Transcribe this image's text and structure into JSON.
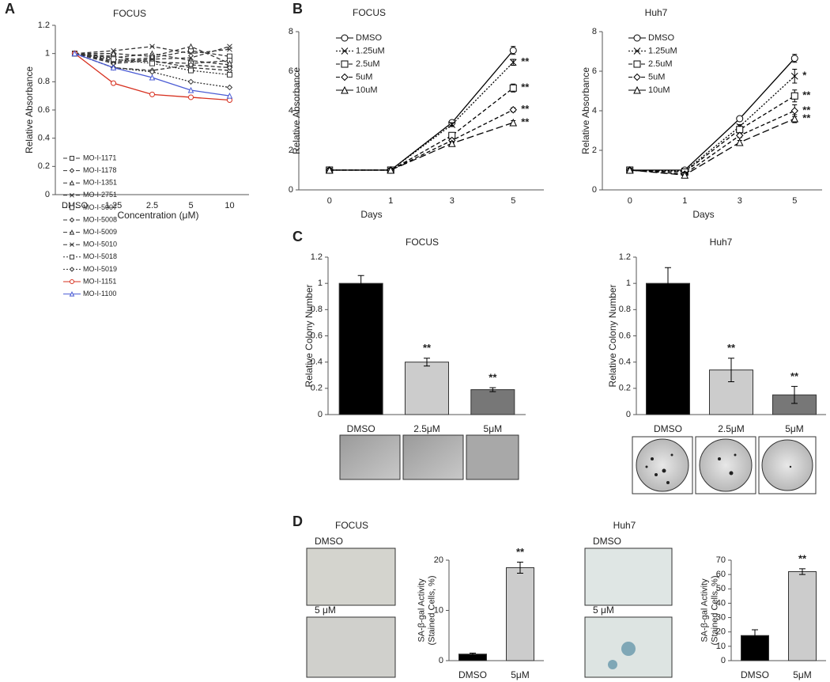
{
  "panels": [
    "A",
    "B",
    "C",
    "D"
  ],
  "chart_data": [
    {
      "type": "line",
      "title": "FOCUS",
      "x_label": "Concentration (μM)",
      "y_label": "Relative Absorbance",
      "categories": [
        "DMSO",
        "1.25",
        "2.5",
        "5",
        "10"
      ],
      "ylim": [
        0,
        1.2
      ],
      "yticks": [
        0,
        0.2,
        0.4,
        0.6,
        0.8,
        1,
        1.2
      ],
      "legend": "lower left",
      "series": [
        {
          "name": "MO-I-1171",
          "color": "#333333",
          "dash": "dashed",
          "marker": "square",
          "values": [
            1,
            0.95,
            0.97,
            1.02,
            0.98
          ]
        },
        {
          "name": "MO-I-1178",
          "color": "#333333",
          "dash": "dashed",
          "marker": "diamond",
          "values": [
            1,
            0.93,
            0.95,
            0.9,
            0.88
          ]
        },
        {
          "name": "MO-I-1351",
          "color": "#333333",
          "dash": "dashed",
          "marker": "triangle",
          "values": [
            1,
            0.97,
            1.0,
            0.95,
            0.92
          ]
        },
        {
          "name": "MO-I-2751",
          "color": "#333333",
          "dash": "dashed",
          "marker": "x",
          "values": [
            1,
            1.02,
            1.05,
            1.0,
            1.03
          ]
        },
        {
          "name": "MO-I-5007",
          "color": "#333333",
          "dash": "dashed",
          "marker": "square",
          "values": [
            1,
            0.98,
            0.94,
            0.93,
            0.95
          ]
        },
        {
          "name": "MO-I-5008",
          "color": "#333333",
          "dash": "dashed",
          "marker": "diamond",
          "values": [
            1,
            0.9,
            0.88,
            0.92,
            0.9
          ]
        },
        {
          "name": "MO-I-5009",
          "color": "#333333",
          "dash": "dashed",
          "marker": "triangle",
          "values": [
            1,
            1.0,
            0.98,
            1.05,
            0.93
          ]
        },
        {
          "name": "MO-I-5010",
          "color": "#333333",
          "dash": "dashed",
          "marker": "x",
          "values": [
            1,
            0.94,
            0.96,
            0.97,
            1.05
          ]
        },
        {
          "name": "MO-I-5018",
          "color": "#333333",
          "dash": "dotted",
          "marker": "square",
          "values": [
            1,
            0.96,
            0.93,
            0.88,
            0.85
          ]
        },
        {
          "name": "MO-I-5019",
          "color": "#333333",
          "dash": "dotted",
          "marker": "diamond",
          "values": [
            1,
            0.9,
            0.87,
            0.8,
            0.76
          ]
        },
        {
          "name": "MO-I-1151",
          "color": "#d7301f",
          "dash": "solid",
          "marker": "circle",
          "values": [
            1,
            0.79,
            0.71,
            0.69,
            0.67
          ]
        },
        {
          "name": "MO-I-1100",
          "color": "#4a5bd4",
          "dash": "solid",
          "marker": "triangle",
          "values": [
            1,
            0.9,
            0.83,
            0.74,
            0.7
          ]
        }
      ]
    },
    {
      "type": "line",
      "title": "FOCUS",
      "x_label": "Days",
      "y_label": "Relative Absorbance",
      "categories": [
        "0",
        "1",
        "3",
        "5"
      ],
      "ylim": [
        0,
        8
      ],
      "yticks": [
        0,
        2,
        4,
        6,
        8
      ],
      "legend": "upper left",
      "series": [
        {
          "name": "DMSO",
          "color": "#000000",
          "dash": "solid",
          "marker": "circle",
          "values": [
            1,
            1,
            3.4,
            7.05
          ],
          "errors": [
            0.1,
            0.1,
            0.1,
            0.2
          ]
        },
        {
          "name": "1.25uM",
          "color": "#000000",
          "dash": "dotted",
          "marker": "x",
          "values": [
            1,
            1,
            3.3,
            6.45
          ],
          "errors": [
            0.1,
            0.1,
            0.1,
            0.15
          ],
          "significance": "**"
        },
        {
          "name": "2.5uM",
          "color": "#000000",
          "dash": "dashed",
          "marker": "square",
          "values": [
            1,
            1,
            2.75,
            5.15
          ],
          "errors": [
            0.1,
            0.1,
            0.1,
            0.2
          ],
          "significance": "**"
        },
        {
          "name": "5uM",
          "color": "#000000",
          "dash": "dashed",
          "marker": "diamond",
          "values": [
            1,
            1,
            2.5,
            4.05
          ],
          "errors": [
            0.1,
            0.1,
            0.1,
            0.1
          ],
          "significance": "**"
        },
        {
          "name": "10uM",
          "color": "#000000",
          "dash": "longdash",
          "marker": "triangle",
          "values": [
            1,
            1,
            2.35,
            3.4
          ],
          "errors": [
            0.1,
            0.1,
            0.1,
            0.1
          ],
          "significance": "**"
        }
      ]
    },
    {
      "type": "line",
      "title": "Huh7",
      "x_label": "Days",
      "y_label": "Relative Absorbance",
      "categories": [
        "0",
        "1",
        "3",
        "5"
      ],
      "ylim": [
        0,
        8
      ],
      "yticks": [
        0,
        2,
        4,
        6,
        8
      ],
      "legend": "upper left",
      "series": [
        {
          "name": "DMSO",
          "color": "#000000",
          "dash": "solid",
          "marker": "circle",
          "values": [
            1,
            1,
            3.6,
            6.65
          ],
          "errors": [
            0.1,
            0.1,
            0.1,
            0.2
          ]
        },
        {
          "name": "1.25uM",
          "color": "#000000",
          "dash": "dotted",
          "marker": "x",
          "values": [
            1,
            0.95,
            3.2,
            5.75
          ],
          "errors": [
            0.1,
            0.1,
            0.1,
            0.35
          ],
          "significance": "*"
        },
        {
          "name": "2.5uM",
          "color": "#000000",
          "dash": "dashed",
          "marker": "square",
          "values": [
            1,
            0.9,
            3.05,
            4.75
          ],
          "errors": [
            0.1,
            0.1,
            0.1,
            0.3
          ],
          "significance": "**"
        },
        {
          "name": "5uM",
          "color": "#000000",
          "dash": "dashed",
          "marker": "diamond",
          "values": [
            1,
            0.8,
            2.75,
            4.0
          ],
          "errors": [
            0.1,
            0.1,
            0.1,
            0.3
          ],
          "significance": "**"
        },
        {
          "name": "10uM",
          "color": "#000000",
          "dash": "longdash",
          "marker": "triangle",
          "values": [
            1,
            0.75,
            2.4,
            3.6
          ],
          "errors": [
            0.1,
            0.1,
            0.1,
            0.2
          ],
          "significance": "**"
        }
      ]
    },
    {
      "type": "bar",
      "title": "FOCUS",
      "y_label": [
        "Relative Colony Number"
      ],
      "categories": [
        "DMSO",
        "2.5μM",
        "5μM"
      ],
      "ylim": [
        0,
        1.2
      ],
      "yticks": [
        0,
        0.2,
        0.4,
        0.6,
        0.8,
        1,
        1.2
      ],
      "values": [
        1,
        0.4,
        0.19
      ],
      "errors": [
        0.06,
        0.03,
        0.015
      ],
      "colors": [
        "#000000",
        "#cccccc",
        "#777777"
      ],
      "significance": [
        null,
        "**",
        "**"
      ]
    },
    {
      "type": "bar",
      "title": "Huh7",
      "y_label": [
        "Relative Colony Number"
      ],
      "categories": [
        "DMSO",
        "2.5μM",
        "5μM"
      ],
      "ylim": [
        0,
        1.2
      ],
      "yticks": [
        0,
        0.2,
        0.4,
        0.6,
        0.8,
        1,
        1.2
      ],
      "values": [
        1,
        0.34,
        0.15
      ],
      "errors": [
        0.12,
        0.09,
        0.065
      ],
      "colors": [
        "#000000",
        "#cccccc",
        "#777777"
      ],
      "significance": [
        null,
        "**",
        "**"
      ]
    },
    {
      "type": "bar",
      "title": "FOCUS",
      "y_label": [
        "SA-β-gal Activity",
        "(Stained Cells, %)"
      ],
      "image_labels": [
        "DMSO",
        "5 μM"
      ],
      "categories": [
        "DMSO",
        "5μM"
      ],
      "ylim": [
        0,
        20
      ],
      "yticks": [
        0,
        10,
        20
      ],
      "values": [
        1.3,
        18.5
      ],
      "errors": [
        0.2,
        1.1
      ],
      "colors": [
        "#000000",
        "#cccccc"
      ],
      "significance": [
        null,
        "**"
      ]
    },
    {
      "type": "bar",
      "title": "Huh7",
      "y_label": [
        "SA-β-gal Activity",
        "(Stained Cells, %)"
      ],
      "image_labels": [
        "DMSO",
        "5 μM"
      ],
      "categories": [
        "DMSO",
        "5μM"
      ],
      "ylim": [
        0,
        70
      ],
      "yticks": [
        0,
        10,
        20,
        30,
        40,
        50,
        60,
        70
      ],
      "values": [
        17.5,
        62
      ],
      "errors": [
        4,
        2
      ],
      "colors": [
        "#000000",
        "#cccccc"
      ],
      "significance": [
        null,
        "**"
      ]
    }
  ]
}
